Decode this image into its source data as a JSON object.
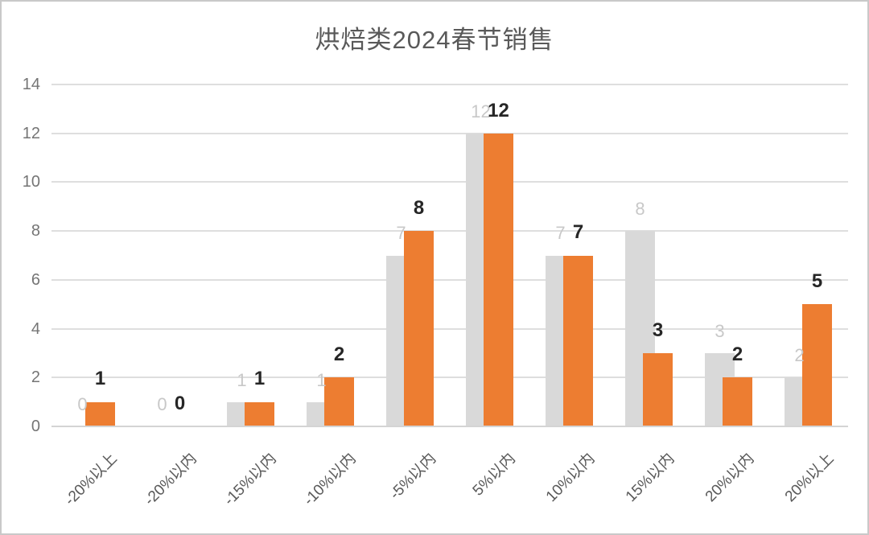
{
  "title": "烘焙类2024春节销售",
  "colors": {
    "accent_orange": "#ED7D31",
    "bar_gray": "#D9D9D9",
    "gridline": "#DEDEDE",
    "axis_line": "#D4D4D4",
    "title_text": "#595959",
    "ytick_text": "#757575",
    "xlabel_text": "#595959",
    "gray_data_label": "#C8C8C8",
    "black_data_label": "#262626"
  },
  "chart_data": {
    "type": "bar",
    "title": "烘焙类2024春节销售",
    "categories": [
      "-20%以上",
      "-20%以内",
      "-15%以内",
      "-10%以内",
      "-5%以内",
      "5%以内",
      "10%以内",
      "15%以内",
      "20%以内",
      "20%以上"
    ],
    "series": [
      {
        "name": "series-1-gray",
        "color": "#D9D9D9",
        "label_color": "#C8C8C8",
        "label_bold": false,
        "values": [
          0,
          0,
          1,
          1,
          7,
          12,
          7,
          8,
          3,
          2
        ]
      },
      {
        "name": "series-2-orange",
        "color": "#ED7D31",
        "label_color": "#262626",
        "label_bold": true,
        "values": [
          1,
          0,
          1,
          2,
          8,
          12,
          7,
          3,
          2,
          5
        ]
      }
    ],
    "xlabel": "",
    "ylabel": "",
    "ylim": [
      0,
      14
    ],
    "yticks": [
      0,
      2,
      4,
      6,
      8,
      10,
      12,
      14
    ],
    "grid": true,
    "legend_position": "none",
    "data_labels": true,
    "xtick_rotation_deg": -45
  }
}
